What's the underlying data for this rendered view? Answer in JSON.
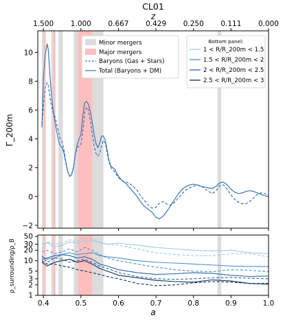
{
  "chart_data": [
    {
      "type": "line",
      "title": "CL01",
      "top_axis": {
        "label": "z",
        "ticks": [
          "1.500",
          "1.000",
          "0.667",
          "0.429",
          "0.250",
          "0.111",
          "0.000"
        ],
        "tick_positions_a": [
          0.4,
          0.5,
          0.6,
          0.7,
          0.8,
          0.9,
          1.0
        ]
      },
      "xlabel": "",
      "xlim": [
        0.385,
        1.0
      ],
      "x_ticks": [],
      "ylabel": "Γ_200m",
      "ylim": [
        -2.2,
        11.5
      ],
      "y_ticks": [
        -2,
        0,
        2,
        4,
        6,
        8,
        10
      ],
      "y_tick_labels": [
        "−2",
        "0",
        "2",
        "4",
        "6",
        "8",
        "10"
      ],
      "shaded_regions": [
        {
          "kind": "minor",
          "x": [
            0.396,
            0.4
          ]
        },
        {
          "kind": "major",
          "x": [
            0.4,
            0.406
          ]
        },
        {
          "kind": "minor",
          "x": [
            0.421,
            0.426
          ]
        },
        {
          "kind": "major",
          "x": [
            0.426,
            0.432
          ]
        },
        {
          "kind": "minor",
          "x": [
            0.44,
            0.452
          ]
        },
        {
          "kind": "minor",
          "x": [
            0.481,
            0.492
          ]
        },
        {
          "kind": "major",
          "x": [
            0.492,
            0.531
          ]
        },
        {
          "kind": "minor",
          "x": [
            0.531,
            0.56
          ]
        },
        {
          "kind": "minor",
          "x": [
            0.864,
            0.874
          ]
        }
      ],
      "legend": {
        "position": "upper-center",
        "entries": [
          "Minor mergers",
          "Major mergers",
          "Baryons (Gas + Stars)",
          "Total (Baryons + DM)"
        ]
      },
      "legend2": {
        "position": "upper-right",
        "title": "Bottom panel:",
        "entries": [
          "1 < R/R_200m < 1.5",
          "1.5 < R/R_200m < 2",
          "2 < R/R_200m < 2.5",
          "2.5 < R/R_200m < 3"
        ]
      },
      "series": [
        {
          "name": "Total (Baryons + DM)",
          "style": "solid",
          "color": "#3a75b0",
          "x": [
            0.396,
            0.4,
            0.405,
            0.41,
            0.413,
            0.416,
            0.42,
            0.425,
            0.43,
            0.435,
            0.44,
            0.445,
            0.45,
            0.455,
            0.46,
            0.465,
            0.47,
            0.475,
            0.48,
            0.485,
            0.49,
            0.495,
            0.5,
            0.505,
            0.51,
            0.515,
            0.52,
            0.525,
            0.53,
            0.535,
            0.54,
            0.545,
            0.55,
            0.555,
            0.56,
            0.565,
            0.57,
            0.575,
            0.58,
            0.59,
            0.6,
            0.61,
            0.62,
            0.63,
            0.64,
            0.65,
            0.66,
            0.67,
            0.68,
            0.69,
            0.7,
            0.71,
            0.72,
            0.73,
            0.74,
            0.75,
            0.76,
            0.77,
            0.78,
            0.79,
            0.8,
            0.81,
            0.82,
            0.83,
            0.84,
            0.85,
            0.86,
            0.87,
            0.88,
            0.89,
            0.9,
            0.91,
            0.92,
            0.93,
            0.94,
            0.95,
            0.96,
            0.97,
            0.98,
            0.99,
            1.0
          ],
          "y": [
            4.8,
            8.2,
            9.9,
            10.6,
            10.2,
            9.0,
            7.5,
            6.2,
            5.3,
            4.6,
            3.9,
            3.5,
            3.4,
            3.0,
            2.3,
            1.7,
            1.4,
            1.5,
            2.0,
            2.9,
            3.6,
            4.0,
            4.3,
            5.6,
            6.5,
            6.6,
            6.4,
            5.9,
            5.2,
            4.3,
            3.7,
            3.4,
            3.7,
            4.2,
            4.2,
            3.9,
            3.2,
            2.5,
            2.1,
            1.9,
            1.4,
            1.1,
            0.9,
            0.6,
            0.3,
            0.0,
            -0.4,
            -0.7,
            -0.9,
            -1.1,
            -1.45,
            -1.55,
            -1.35,
            -1.0,
            -0.6,
            -0.2,
            0.2,
            0.5,
            0.7,
            0.8,
            0.85,
            0.8,
            0.7,
            0.65,
            0.6,
            0.55,
            0.7,
            0.95,
            1.0,
            0.8,
            0.5,
            0.3,
            0.2,
            0.25,
            0.35,
            0.4,
            0.35,
            0.25,
            0.15,
            0.05,
            0.0
          ]
        },
        {
          "name": "Baryons (Gas + Stars)",
          "style": "dashed",
          "color": "#3a75b0",
          "x": [
            0.396,
            0.4,
            0.405,
            0.41,
            0.413,
            0.416,
            0.42,
            0.425,
            0.43,
            0.435,
            0.44,
            0.445,
            0.45,
            0.455,
            0.46,
            0.465,
            0.47,
            0.475,
            0.48,
            0.485,
            0.49,
            0.495,
            0.5,
            0.505,
            0.51,
            0.515,
            0.52,
            0.525,
            0.53,
            0.535,
            0.54,
            0.545,
            0.55,
            0.555,
            0.56,
            0.565,
            0.57,
            0.575,
            0.58,
            0.59,
            0.6,
            0.61,
            0.62,
            0.63,
            0.64,
            0.65,
            0.66,
            0.67,
            0.68,
            0.69,
            0.7,
            0.71,
            0.72,
            0.73,
            0.74,
            0.75,
            0.76,
            0.77,
            0.78,
            0.79,
            0.8,
            0.81,
            0.82,
            0.83,
            0.84,
            0.85,
            0.86,
            0.87,
            0.88,
            0.89,
            0.9,
            0.91,
            0.92,
            0.93,
            0.94,
            0.95,
            0.96,
            0.97,
            0.98,
            0.99,
            1.0
          ],
          "y": [
            5.0,
            6.3,
            7.6,
            7.9,
            7.7,
            7.2,
            6.5,
            5.9,
            5.6,
            5.1,
            4.5,
            4.0,
            3.8,
            3.2,
            2.4,
            1.7,
            1.4,
            1.5,
            2.0,
            2.9,
            3.4,
            3.5,
            3.6,
            4.5,
            5.8,
            6.2,
            6.0,
            5.3,
            4.4,
            3.5,
            3.0,
            2.8,
            3.0,
            3.5,
            3.9,
            3.7,
            3.0,
            2.4,
            2.0,
            1.7,
            1.3,
            1.1,
            1.0,
            0.9,
            0.7,
            0.4,
            0.0,
            -0.3,
            -0.6,
            -0.8,
            -0.75,
            -0.45,
            -0.35,
            -0.55,
            -0.6,
            -0.4,
            -0.1,
            0.2,
            0.45,
            0.6,
            0.7,
            0.8,
            0.75,
            0.55,
            0.35,
            0.2,
            0.4,
            0.75,
            0.8,
            0.5,
            0.1,
            -0.2,
            -0.4,
            -0.5,
            -0.5,
            -0.35,
            -0.1,
            0.15,
            0.25,
            0.2,
            0.1
          ]
        }
      ]
    },
    {
      "type": "line",
      "xlabel": "a",
      "xlim": [
        0.385,
        1.0
      ],
      "x_ticks": [
        0.4,
        0.5,
        0.6,
        0.7,
        0.8,
        0.9,
        1.0
      ],
      "x_tick_labels": [
        "0.4",
        "0.5",
        "0.6",
        "0.7",
        "0.8",
        "0.9",
        "1.0"
      ],
      "ylabel": "ρ_surrounding/ρ_B",
      "yscale": "log",
      "ylim": [
        1,
        55
      ],
      "y_ticks": [
        1,
        2,
        3,
        5,
        10,
        20,
        30,
        50
      ],
      "y_tick_labels": [
        "1",
        "2",
        "3",
        "5",
        "10",
        "20",
        "30",
        "50"
      ],
      "series": [
        {
          "name": "1 < R/R_200m < 1.5",
          "style": "solid",
          "color": "#9ecae1",
          "x": [
            0.396,
            0.41,
            0.43,
            0.45,
            0.47,
            0.49,
            0.51,
            0.53,
            0.55,
            0.57,
            0.6,
            0.65,
            0.7,
            0.75,
            0.8,
            0.85,
            0.9,
            0.95,
            1.0
          ],
          "y": [
            30,
            33,
            25,
            28,
            35,
            32,
            37,
            38,
            33,
            30,
            32,
            28,
            24,
            22,
            20,
            19,
            20,
            17,
            16
          ]
        },
        {
          "name": "1 < R/R_200m < 1.5",
          "style": "dashed",
          "color": "#9ecae1",
          "x": [
            0.396,
            0.41,
            0.43,
            0.45,
            0.47,
            0.49,
            0.51,
            0.53,
            0.55,
            0.57,
            0.6,
            0.65,
            0.7,
            0.75,
            0.8,
            0.85,
            0.9,
            0.95,
            1.0
          ],
          "y": [
            22,
            35,
            30,
            32,
            40,
            36,
            45,
            42,
            35,
            30,
            28,
            22,
            17,
            15,
            14,
            14,
            16,
            16,
            13
          ]
        },
        {
          "name": "1.5 < R/R_200m < 2",
          "style": "solid",
          "color": "#4a90c8",
          "x": [
            0.396,
            0.41,
            0.43,
            0.45,
            0.47,
            0.49,
            0.51,
            0.53,
            0.55,
            0.57,
            0.6,
            0.65,
            0.7,
            0.75,
            0.8,
            0.85,
            0.9,
            0.95,
            1.0
          ],
          "y": [
            13,
            11,
            12,
            15,
            17,
            15,
            16,
            17,
            14,
            13,
            12,
            10,
            9,
            8.5,
            8,
            7.5,
            7,
            6.8,
            6.8
          ]
        },
        {
          "name": "1.5 < R/R_200m < 2",
          "style": "dashed",
          "color": "#4a90c8",
          "x": [
            0.396,
            0.41,
            0.43,
            0.45,
            0.47,
            0.49,
            0.51,
            0.53,
            0.55,
            0.57,
            0.6,
            0.65,
            0.7,
            0.75,
            0.8,
            0.85,
            0.9,
            0.95,
            1.0
          ],
          "y": [
            18,
            20,
            16,
            18,
            22,
            18,
            24,
            20,
            15,
            12,
            10,
            8,
            6.5,
            5.5,
            5,
            4.8,
            5.5,
            5.3,
            4.8
          ]
        },
        {
          "name": "2 < R/R_200m < 2.5",
          "style": "solid",
          "color": "#2565a8",
          "x": [
            0.396,
            0.41,
            0.43,
            0.45,
            0.47,
            0.49,
            0.51,
            0.53,
            0.55,
            0.57,
            0.6,
            0.65,
            0.7,
            0.75,
            0.8,
            0.85,
            0.9,
            0.95,
            1.0
          ],
          "y": [
            11,
            12,
            14,
            15,
            14,
            12,
            13,
            11,
            8,
            7,
            5.5,
            4.5,
            4,
            4.2,
            4.5,
            4.3,
            3.8,
            3.5,
            3.6
          ]
        },
        {
          "name": "2 < R/R_200m < 2.5",
          "style": "dashed",
          "color": "#2565a8",
          "x": [
            0.396,
            0.41,
            0.43,
            0.45,
            0.47,
            0.49,
            0.51,
            0.53,
            0.55,
            0.57,
            0.6,
            0.65,
            0.7,
            0.75,
            0.8,
            0.85,
            0.9,
            0.95,
            1.0
          ],
          "y": [
            14,
            9,
            12,
            11,
            9,
            10,
            11,
            9,
            7,
            6,
            4.5,
            3.5,
            3,
            2.9,
            3,
            3.2,
            3.3,
            3.1,
            3
          ]
        },
        {
          "name": "2.5 < R/R_200m < 3",
          "style": "solid",
          "color": "#0b2e5c",
          "x": [
            0.396,
            0.41,
            0.43,
            0.45,
            0.47,
            0.49,
            0.51,
            0.53,
            0.55,
            0.57,
            0.6,
            0.65,
            0.7,
            0.75,
            0.8,
            0.85,
            0.9,
            0.95,
            1.0
          ],
          "y": [
            9,
            7,
            9,
            10,
            11,
            9,
            10,
            8,
            6,
            5,
            3.8,
            3.2,
            2.7,
            2.5,
            2.4,
            2.8,
            2.6,
            2.2,
            2.1
          ]
        },
        {
          "name": "2.5 < R/R_200m < 3",
          "style": "dashed",
          "color": "#0b2e5c",
          "x": [
            0.396,
            0.41,
            0.43,
            0.45,
            0.47,
            0.49,
            0.51,
            0.53,
            0.55,
            0.57,
            0.6,
            0.65,
            0.7,
            0.75,
            0.8,
            0.85,
            0.9,
            0.95,
            1.0
          ],
          "y": [
            10,
            8,
            8,
            7,
            6.5,
            5.5,
            5,
            4.5,
            4,
            3.5,
            3,
            2.2,
            1.9,
            2,
            2.3,
            2.5,
            2.4,
            2.2,
            2.2
          ]
        }
      ]
    }
  ],
  "colors": {
    "minor_shade": "#dcdcdc",
    "major_shade": "#ffbfbf",
    "line_main": "#3a75b0"
  }
}
